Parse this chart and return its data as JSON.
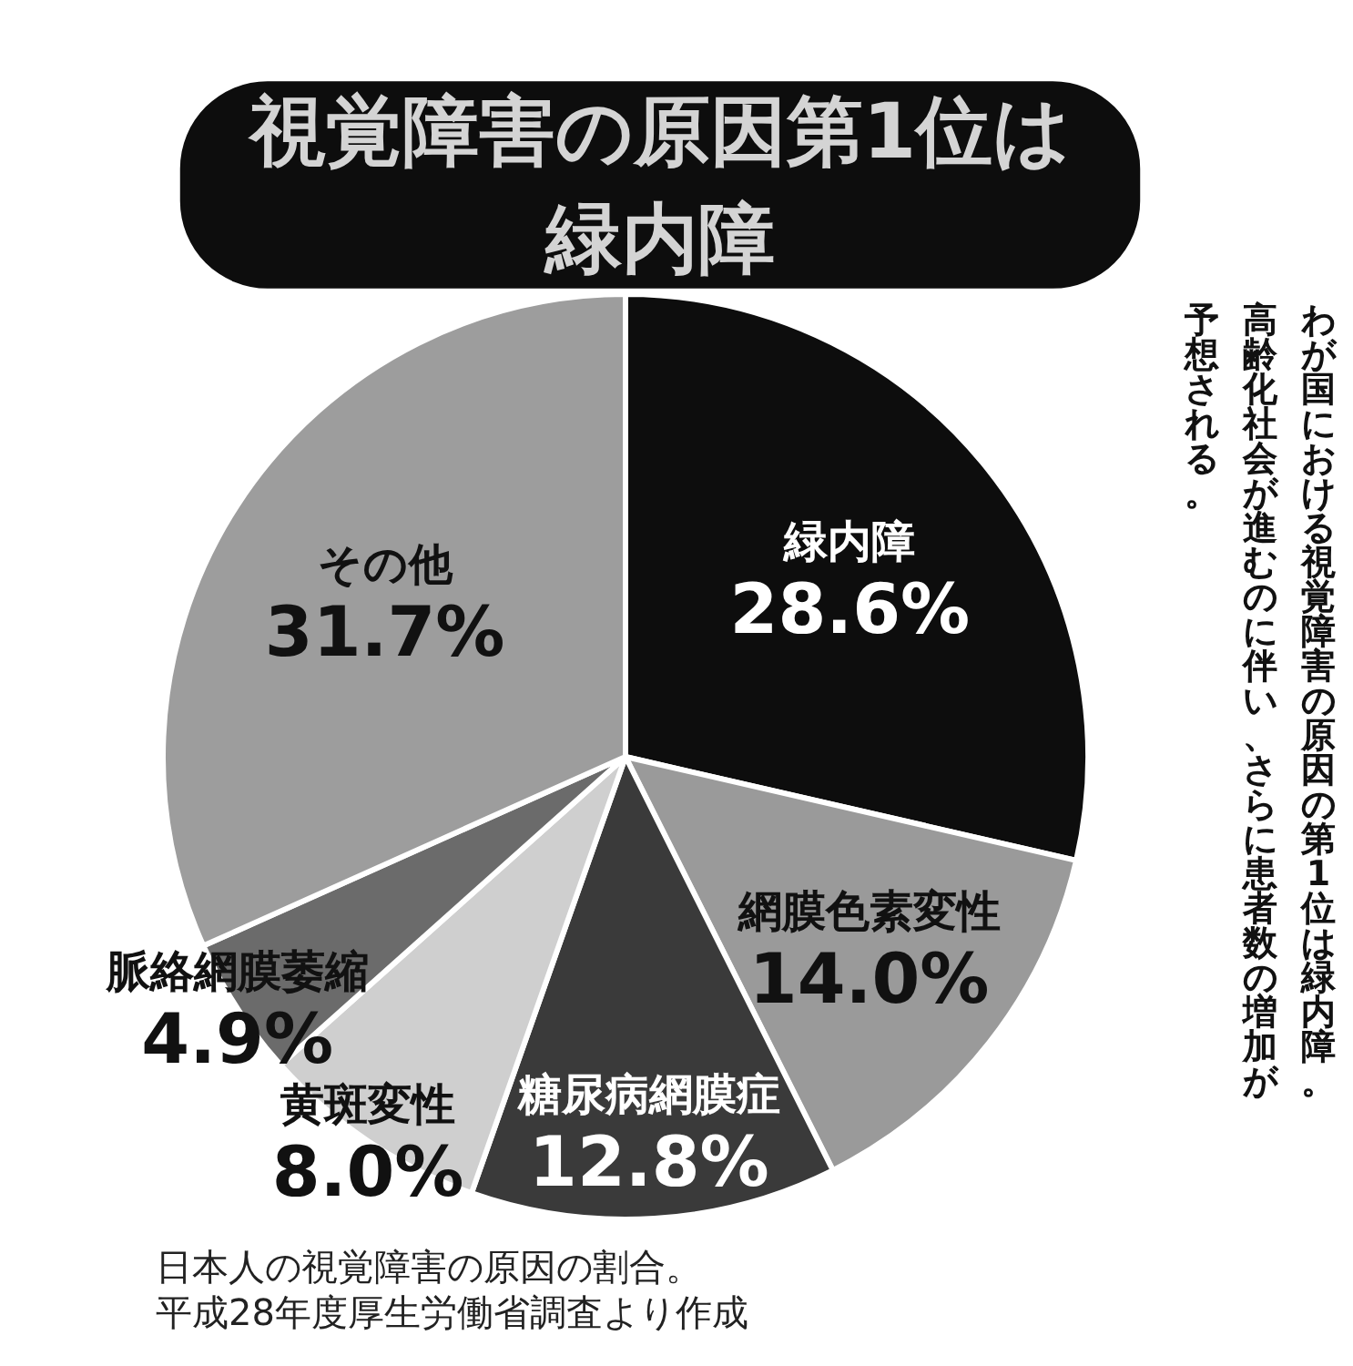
{
  "chart_data": {
    "type": "pie",
    "title": "視覚障害の原因第1位は緑内障",
    "subtitle": "わが国における視覚障害の原因の第1位は緑内障。高齢化社会が進むのに伴い、さらに患者数の増加が予想される。",
    "categories": [
      "緑内障",
      "網膜色素変性",
      "糖尿病網膜症",
      "黄斑変性",
      "脈絡網膜萎縮",
      "その他"
    ],
    "values": [
      28.6,
      14.0,
      12.8,
      8.0,
      4.9,
      31.7
    ],
    "value_labels": [
      "28.6%",
      "14.0%",
      "12.8%",
      "8.0%",
      "4.9%",
      "31.7%"
    ],
    "colors": [
      "#0d0d0d",
      "#9a9a9a",
      "#3a3a3a",
      "#cfcfcf",
      "#6b6b6b",
      "#9d9d9d"
    ],
    "annotations": [
      "日本人の視覚障害の原因の割合。",
      "平成28年度厚生労働省調査より作成"
    ]
  }
}
